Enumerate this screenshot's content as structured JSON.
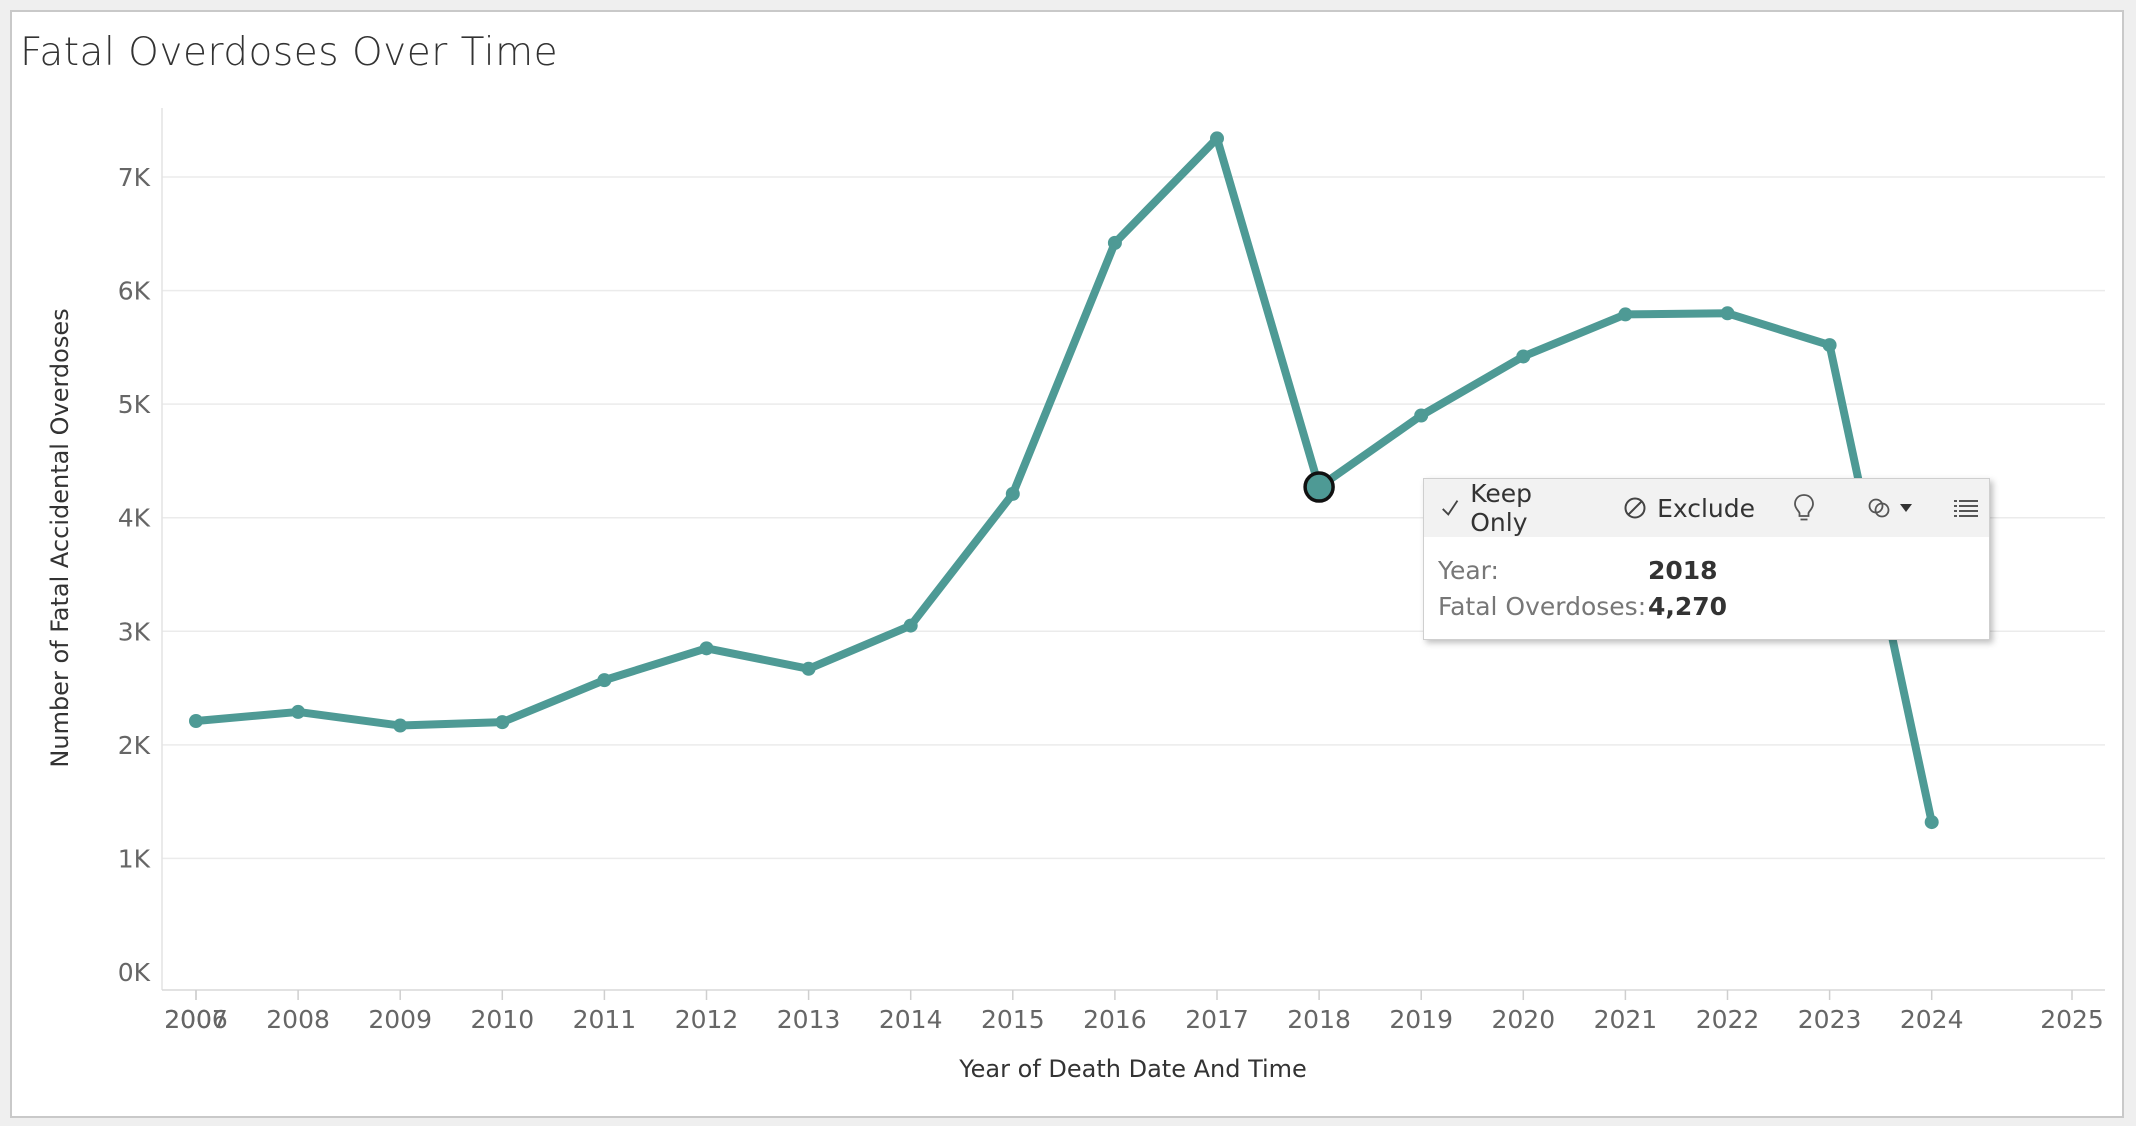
{
  "chart_data": {
    "type": "line",
    "title": "Fatal Overdoses Over Time",
    "xlabel": "Year of Death Date And Time",
    "ylabel": "Number of Fatal Accidental Overdoses",
    "x_tick_labels": [
      "2006",
      "2007",
      "2008",
      "2009",
      "2010",
      "2011",
      "2012",
      "2013",
      "2014",
      "2015",
      "2016",
      "2017",
      "2018",
      "2019",
      "2020",
      "2021",
      "2022",
      "2023",
      "2024",
      "2025"
    ],
    "y_tick_labels": [
      "0K",
      "1K",
      "2K",
      "3K",
      "4K",
      "5K",
      "6K",
      "7K"
    ],
    "xlim": [
      2006,
      2025
    ],
    "ylim": [
      0,
      7500
    ],
    "grid": true,
    "color": "#4e9a95",
    "series": [
      {
        "x": [
          2007,
          2008,
          2009,
          2010,
          2011,
          2012,
          2013,
          2014,
          2015,
          2016,
          2017,
          2018,
          2019,
          2020,
          2021,
          2022,
          2023,
          2024
        ],
        "values": [
          2210,
          2290,
          2170,
          2200,
          2570,
          2850,
          2670,
          3050,
          4210,
          6420,
          7340,
          4270,
          4900,
          5420,
          5790,
          5800,
          5520,
          1320
        ]
      }
    ],
    "highlighted": {
      "x": 2018,
      "value": 4270
    }
  },
  "tooltip": {
    "keep_only_label": "Keep Only",
    "exclude_label": "Exclude",
    "year_key": "Year:",
    "year_value": "2018",
    "overdoses_key": "Fatal Overdoses:",
    "overdoses_value": "4,270"
  }
}
